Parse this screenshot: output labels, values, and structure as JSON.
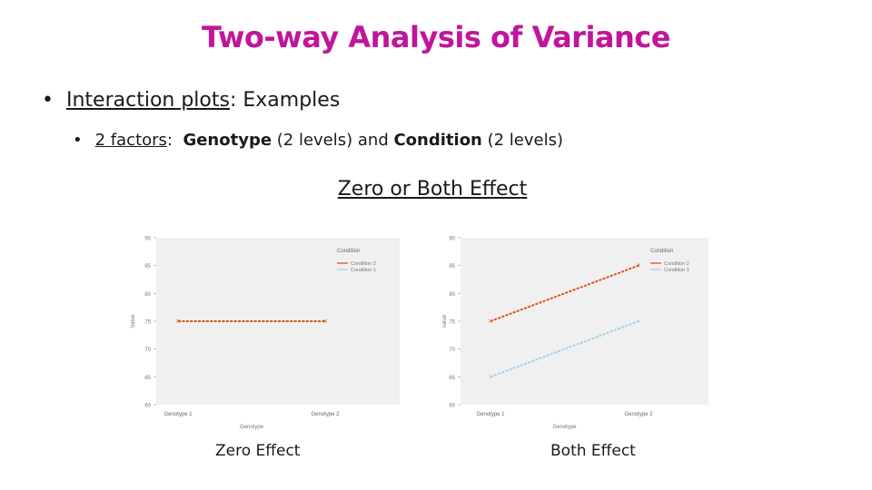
{
  "slide": {
    "title": "Two-way Analysis of Variance",
    "bullet1": {
      "underlined": "Interaction plots",
      "rest": ": Examples"
    },
    "bullet2": {
      "underlined": "2 factors",
      "sep": ":  ",
      "factor1": "Genotype",
      "factor1_levels": " (2 levels) and ",
      "factor2": "Condition",
      "factor2_levels": " (2 levels)"
    },
    "section_title": "Zero or Both Effect",
    "captions": [
      "Zero Effect",
      "Both Effect"
    ]
  },
  "colors": {
    "title": "#c0169b",
    "condition2": "#e0541e",
    "condition1": "#a7d3e8"
  },
  "chart_data": [
    {
      "type": "line",
      "title": "",
      "xlabel": "Genotype",
      "ylabel": "Value",
      "categories": [
        "Genotype 1",
        "Genotype 2"
      ],
      "yticks": [
        60,
        65,
        70,
        75,
        80,
        85,
        90
      ],
      "ylim": [
        60,
        90
      ],
      "legend_title": "Condition",
      "legend_position": "right",
      "grid": false,
      "series": [
        {
          "name": "Condition 2",
          "values": [
            75,
            75
          ],
          "color": "#e0541e"
        },
        {
          "name": "Condition 1",
          "values": [
            75,
            75
          ],
          "color": "#a7d3e8"
        }
      ]
    },
    {
      "type": "line",
      "title": "",
      "xlabel": "Genotype",
      "ylabel": "value",
      "categories": [
        "Genotype 1",
        "Genotype 2"
      ],
      "yticks": [
        60,
        65,
        70,
        75,
        80,
        85,
        90
      ],
      "ylim": [
        60,
        90
      ],
      "legend_title": "Condition",
      "legend_position": "right",
      "grid": false,
      "series": [
        {
          "name": "Condition 2",
          "values": [
            75,
            85
          ],
          "color": "#e0541e"
        },
        {
          "name": "Condition 1",
          "values": [
            65,
            75
          ],
          "color": "#a7d3e8"
        }
      ]
    }
  ]
}
